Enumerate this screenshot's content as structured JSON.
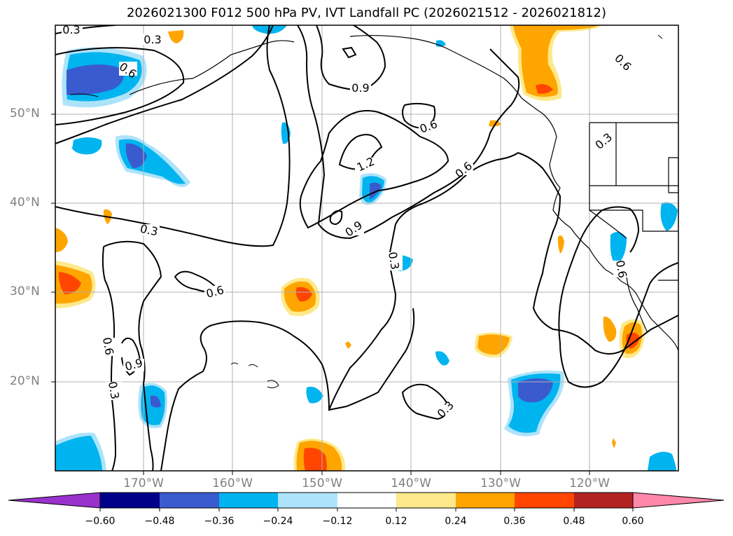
{
  "title": "2026021300 F012 500 hPa PV, IVT Landfall PC (2026021512 - 2026021812)",
  "axes": {
    "lat_labels": [
      "50°N",
      "40°N",
      "30°N",
      "20°N"
    ],
    "lon_labels": [
      "170°W",
      "160°W",
      "150°W",
      "140°W",
      "130°W",
      "120°W"
    ]
  },
  "contour_labels": [
    "0.3",
    "0.3",
    "0.6",
    "0.9",
    "0.6",
    "1.2",
    "0.6",
    "0.3",
    "0.6",
    "0.3",
    "0.6",
    "0.9",
    "0.6",
    "0.3",
    "0.9",
    "0.3",
    "0.3",
    "0.6"
  ],
  "colorbar": {
    "ticks": [
      "−0.60",
      "−0.48",
      "−0.36",
      "−0.24",
      "−0.12",
      "0.12",
      "0.24",
      "0.36",
      "0.48",
      "0.60"
    ],
    "colors": {
      "under": "#9932cc",
      "neg60_48": "#00008b",
      "neg48_36": "#3a5bcf",
      "neg36_24": "#00b4f0",
      "neg24_12": "#ade3fa",
      "neutral": "#ffffff",
      "pos12_24": "#fde98a",
      "pos24_36": "#ffa500",
      "pos36_48": "#ff4500",
      "pos48_60": "#b22222",
      "over": "#ff88aa"
    }
  }
}
